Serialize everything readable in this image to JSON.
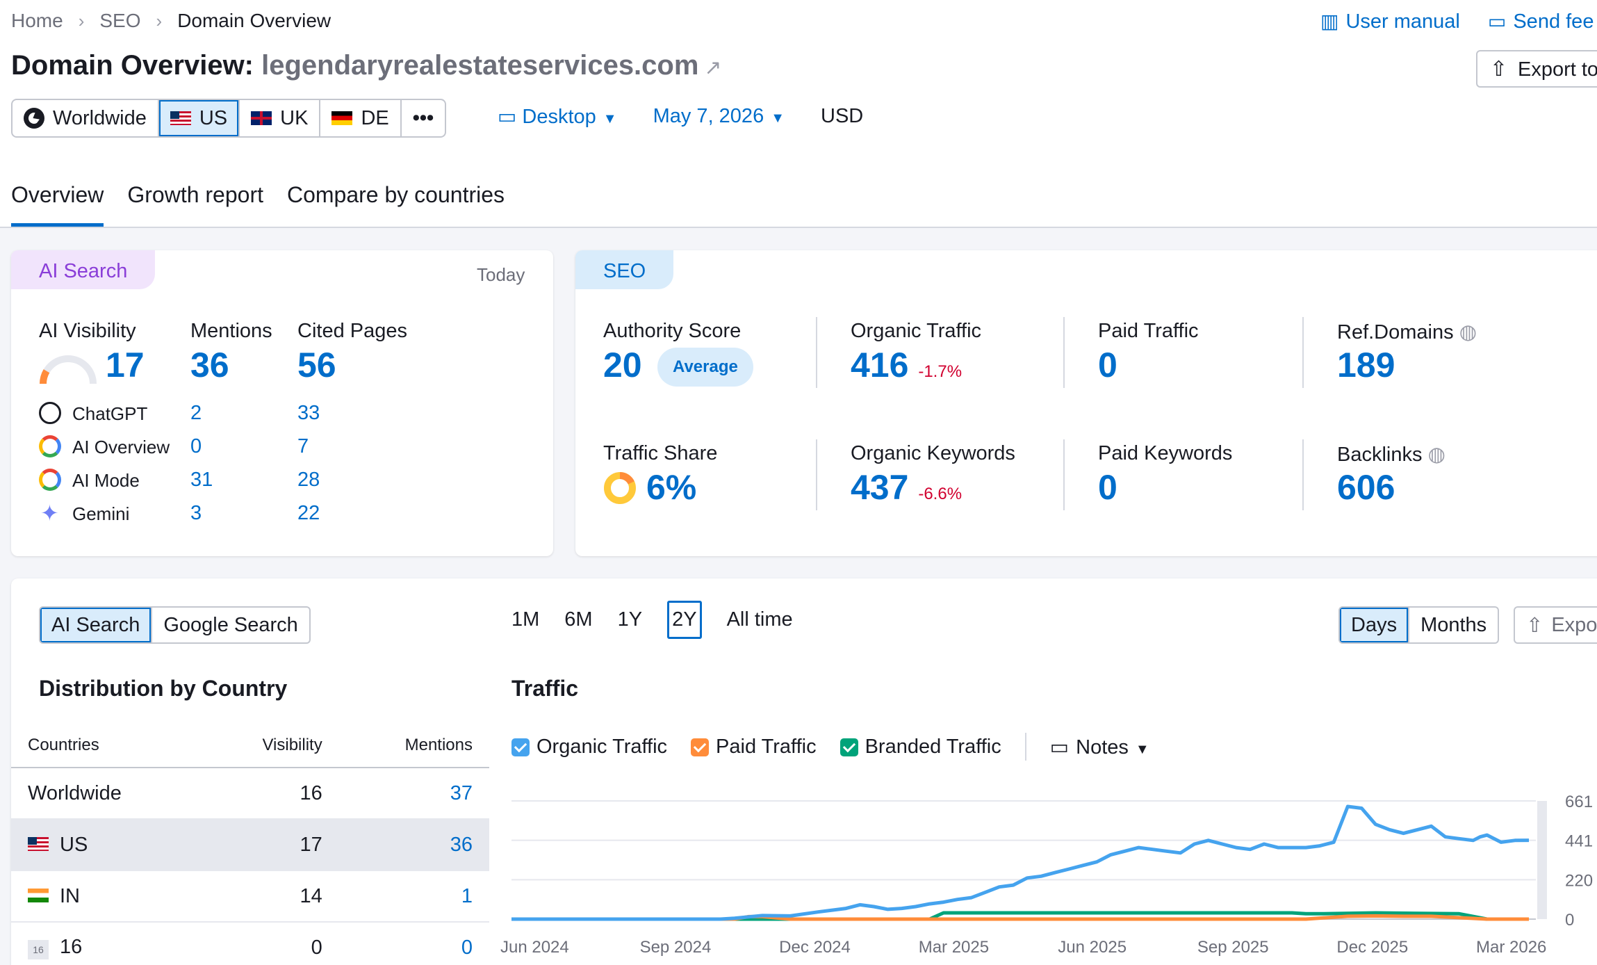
{
  "breadcrumb": [
    "Home",
    "SEO",
    "Domain Overview"
  ],
  "top_links": {
    "manual": "User manual",
    "feedback": "Send fee"
  },
  "title": {
    "prefix": "Domain Overview:",
    "domain": "legendaryrealestateservices.com"
  },
  "export_label": "Export to",
  "databases": [
    {
      "label": "Worldwide",
      "icon": "globe-icon"
    },
    {
      "label": "US",
      "icon": "us-flag",
      "active": true
    },
    {
      "label": "UK",
      "icon": "uk-flag"
    },
    {
      "label": "DE",
      "icon": "de-flag"
    },
    {
      "label": "•••",
      "icon": "more-icon"
    }
  ],
  "selectors": {
    "device": "Desktop",
    "date": "May 7, 2026",
    "currency": "USD"
  },
  "tabs": [
    "Overview",
    "Growth report",
    "Compare by countries"
  ],
  "ai_card": {
    "pill": "AI Search",
    "date": "Today",
    "headers": {
      "visibility": "AI Visibility",
      "mentions": "Mentions",
      "cited": "Cited Pages"
    },
    "visibility": "17",
    "visibility_fraction": 0.17,
    "mentions": "36",
    "cited": "56",
    "rows": [
      {
        "name": "ChatGPT",
        "icon": "chatgpt-icon",
        "mentions": "2",
        "cited": "33"
      },
      {
        "name": "AI Overview",
        "icon": "google-icon",
        "mentions": "0",
        "cited": "7"
      },
      {
        "name": "AI Mode",
        "icon": "google-icon",
        "mentions": "31",
        "cited": "28"
      },
      {
        "name": "Gemini",
        "icon": "gemini-icon",
        "mentions": "3",
        "cited": "22"
      }
    ]
  },
  "seo_card": {
    "pill": "SEO",
    "authority": {
      "label": "Authority Score",
      "value": "20",
      "badge": "Average"
    },
    "organic_traffic": {
      "label": "Organic Traffic",
      "value": "416",
      "change": "-1.7%"
    },
    "paid_traffic": {
      "label": "Paid Traffic",
      "value": "0"
    },
    "ref_domains": {
      "label": "Ref.Domains",
      "value": "189"
    },
    "traffic_share": {
      "label": "Traffic Share",
      "value": "6%",
      "fraction": 0.06
    },
    "organic_keywords": {
      "label": "Organic Keywords",
      "value": "437",
      "change": "-6.6%"
    },
    "paid_keywords": {
      "label": "Paid Keywords",
      "value": "0"
    },
    "backlinks": {
      "label": "Backlinks",
      "value": "606"
    }
  },
  "lower": {
    "source_toggle": [
      "AI Search",
      "Google Search"
    ],
    "periods": [
      "1M",
      "6M",
      "1Y",
      "2Y",
      "All time"
    ],
    "active_period": "2Y",
    "granularity": [
      "Days",
      "Months"
    ],
    "export": "Expo",
    "dist_title": "Distribution by Country",
    "traffic_title": "Traffic",
    "table": {
      "headers": [
        "Countries",
        "Visibility",
        "Mentions"
      ],
      "rows": [
        {
          "country": "Worldwide",
          "flag": "",
          "visibility": "16",
          "mentions": "37"
        },
        {
          "country": "US",
          "flag": "us",
          "visibility": "17",
          "mentions": "36",
          "highlight": true
        },
        {
          "country": "IN",
          "flag": "in",
          "visibility": "14",
          "mentions": "1"
        },
        {
          "country": "16",
          "flag": "16",
          "visibility": "0",
          "mentions": "0"
        }
      ]
    },
    "legend": {
      "organic": "Organic Traffic",
      "paid": "Paid Traffic",
      "branded": "Branded Traffic",
      "notes": "Notes"
    }
  },
  "chart_data": {
    "type": "line",
    "x_ticks": [
      "Jun 2024",
      "Sep 2024",
      "Dec 2024",
      "Mar 2025",
      "Jun 2025",
      "Sep 2025",
      "Dec 2025",
      "Mar 2026"
    ],
    "y_ticks": [
      "661",
      "441",
      "220",
      "0"
    ],
    "ylim": [
      0,
      661
    ],
    "colors": {
      "organic": "#45a3ee",
      "paid": "#ff8c3a",
      "branded": "#00a37a"
    },
    "series": [
      {
        "name": "Organic Traffic",
        "key": "organic",
        "x": [
          0,
          30,
          60,
          90,
          110,
          120,
          140,
          150,
          160,
          180,
          200,
          220,
          240,
          250,
          260,
          270,
          280,
          290,
          300,
          310,
          320,
          330,
          340,
          350,
          360,
          370,
          380,
          390,
          400,
          410,
          420,
          430,
          440,
          450,
          460,
          470,
          480,
          490,
          500,
          510,
          520,
          530,
          540,
          550,
          560,
          570,
          580,
          590,
          600,
          610,
          620,
          630,
          640,
          650,
          660,
          670,
          680,
          690,
          695,
          700,
          710,
          720,
          730
        ],
        "values": [
          0,
          0,
          0,
          0,
          0,
          0,
          0,
          0,
          5,
          20,
          18,
          40,
          60,
          80,
          70,
          55,
          60,
          70,
          85,
          95,
          110,
          120,
          150,
          180,
          190,
          230,
          240,
          260,
          280,
          300,
          320,
          360,
          380,
          400,
          390,
          380,
          370,
          420,
          440,
          420,
          400,
          390,
          420,
          400,
          400,
          400,
          410,
          430,
          630,
          620,
          530,
          500,
          480,
          500,
          520,
          460,
          450,
          440,
          460,
          470,
          430,
          440,
          441
        ]
      },
      {
        "name": "Paid Traffic",
        "key": "paid",
        "x": [
          0,
          160,
          170,
          180,
          200,
          400,
          410,
          560,
          570,
          600,
          620,
          640,
          660,
          700,
          730
        ],
        "values": [
          0,
          0,
          14,
          14,
          0,
          0,
          0,
          0,
          0,
          16,
          18,
          16,
          16,
          0,
          0
        ]
      },
      {
        "name": "Branded Traffic",
        "key": "branded",
        "x": [
          0,
          300,
          310,
          320,
          560,
          570,
          580,
          620,
          680,
          700,
          730
        ],
        "values": [
          0,
          0,
          35,
          35,
          35,
          30,
          30,
          35,
          30,
          0,
          0
        ]
      }
    ]
  }
}
